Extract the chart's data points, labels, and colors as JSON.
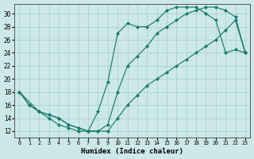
{
  "xlabel": "Humidex (Indice chaleur)",
  "bg_color": "#cce8e8",
  "grid_color": "#aacccc",
  "line_color": "#1a7a6e",
  "xlim": [
    -0.5,
    23.5
  ],
  "ylim": [
    11,
    31.5
  ],
  "xticks": [
    0,
    1,
    2,
    3,
    4,
    5,
    6,
    7,
    8,
    9,
    10,
    11,
    12,
    13,
    14,
    15,
    16,
    17,
    18,
    19,
    20,
    21,
    22,
    23
  ],
  "yticks": [
    12,
    14,
    16,
    18,
    20,
    22,
    24,
    26,
    28,
    30
  ],
  "curve1_x": [
    0,
    1,
    2,
    3,
    4,
    5,
    6,
    7,
    8,
    9,
    10,
    11,
    12,
    13,
    14,
    15,
    16,
    17,
    18,
    19,
    20,
    21,
    22,
    23
  ],
  "curve1_y": [
    18,
    16,
    15,
    14,
    13,
    12.5,
    12,
    12,
    15,
    19.5,
    27,
    28.5,
    28,
    28,
    29,
    30.5,
    31,
    31,
    31,
    30,
    29,
    24,
    24.5,
    24
  ],
  "curve2_x": [
    0,
    2,
    3,
    4,
    5,
    6,
    7,
    8,
    9,
    10,
    11,
    12,
    13,
    14,
    15,
    16,
    17,
    18,
    19,
    20,
    21,
    22,
    23
  ],
  "curve2_y": [
    18,
    15,
    14.5,
    14,
    13,
    12.5,
    12,
    12,
    13,
    18,
    22,
    23.5,
    25,
    27,
    28,
    29,
    30,
    30.5,
    31,
    31,
    30.5,
    29.5,
    24
  ],
  "curve3_x": [
    0,
    1,
    2,
    3,
    4,
    5,
    6,
    7,
    8,
    9,
    10,
    11,
    12,
    13,
    14,
    15,
    16,
    17,
    18,
    19,
    20,
    21,
    22,
    23
  ],
  "curve3_y": [
    18,
    16,
    15,
    14.5,
    14,
    13,
    12.5,
    12,
    12,
    12,
    14,
    16,
    17.5,
    19,
    20,
    21,
    22,
    23,
    24,
    25,
    26,
    27.5,
    29,
    24
  ]
}
